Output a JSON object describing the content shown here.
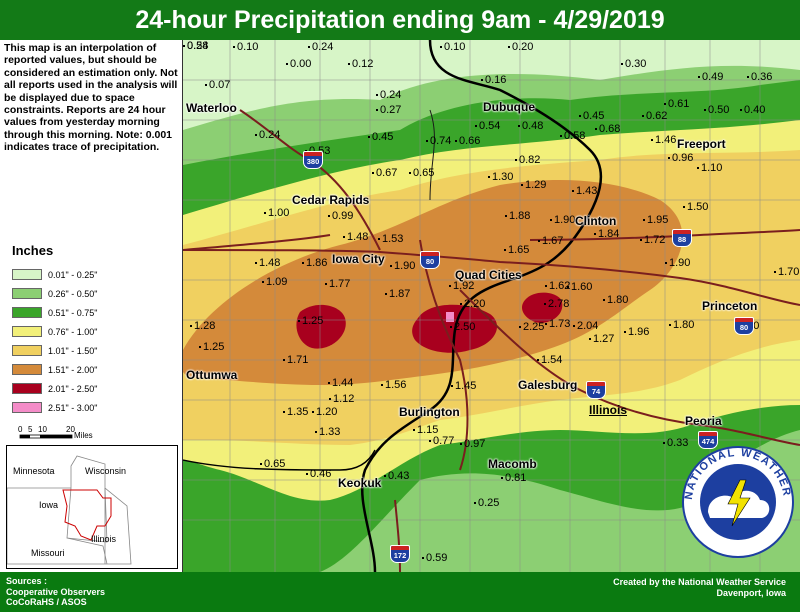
{
  "title": "24-hour Precipitation ending 9am - 4/29/2019",
  "note": "This map is an interpolation of reported values, but should be considered an estimation only. Not all reports used in the analysis will be displayed due to space constraints. Reports are 24 hour values from yesterday morning through this morning. Note: 0.001 indicates trace of precipitation.",
  "legend": {
    "title": "Inches",
    "items": [
      {
        "label": "0.01\" - 0.25\"",
        "color": "#d7f5c7"
      },
      {
        "label": "0.26\" - 0.50\"",
        "color": "#8ccf73"
      },
      {
        "label": "0.51\" - 0.75\"",
        "color": "#3aa52a"
      },
      {
        "label": "0.76\" - 1.00\"",
        "color": "#f2f07a"
      },
      {
        "label": "1.01\" - 1.50\"",
        "color": "#f0d060"
      },
      {
        "label": "1.51\" - 2.00\"",
        "color": "#d48a3a"
      },
      {
        "label": "2.01\" - 2.50\"",
        "color": "#a8001e"
      },
      {
        "label": "2.51\" - 3.00\"",
        "color": "#f48cc8"
      }
    ]
  },
  "scale": {
    "ticks": [
      "0",
      "5",
      "10",
      "20"
    ],
    "unit": "Miles"
  },
  "inset": {
    "states": [
      "Minnesota",
      "Wisconsin",
      "Iowa",
      "Illinois",
      "Missouri"
    ]
  },
  "map": {
    "state_label": "Illinois",
    "cities": [
      "Waterloo",
      "Dubuque",
      "Freeport",
      "Cedar Rapids",
      "Clinton",
      "Iowa City",
      "Quad Cities",
      "Princeton",
      "Ottumwa",
      "Galesburg",
      "Burlington",
      "Peoria",
      "Macomb",
      "Keokuk"
    ],
    "interstates": [
      "380",
      "80",
      "88",
      "80",
      "74",
      "474",
      "172"
    ],
    "values": [
      "0.10",
      "0.24",
      "0.10",
      "0.20",
      "0.00",
      "0.12",
      "0.30",
      "0.49",
      "0.36",
      "0.07",
      "0.16",
      "0.24",
      "0.27",
      "0.61",
      "0.50",
      "0.40",
      "0.45",
      "0.62",
      "0.54",
      "0.48",
      "0.68",
      "0.24",
      "0.45",
      "0.74",
      "0.66",
      "0.58",
      "1.46",
      "0.53",
      "0.96",
      "0.82",
      "1.10",
      "0.67",
      "0.65",
      "1.30",
      "1.29",
      "1.43",
      "1.50",
      "1.00",
      "0.99",
      "1.88",
      "1.90",
      "1.95",
      "1.48",
      "1.53",
      "1.67",
      "1.84",
      "1.72",
      "1.65",
      "1.48",
      "1.86",
      "1.90",
      "1.90",
      "1.92",
      "1.62",
      "1.60",
      "1.70",
      "1.09",
      "1.77",
      "1.87",
      "1.80",
      "2.20",
      "2.78",
      "2.00",
      "1.28",
      "1.25",
      "2.50",
      "2.25",
      "1.73",
      "2.04",
      "1.96",
      "1.80",
      "1.25",
      "1.27",
      "1.71",
      "1.54",
      "1.56",
      "1.44",
      "1.45",
      "1.12",
      "1.20",
      "1.35",
      "1.33",
      "1.15",
      "0.77",
      "0.97",
      "0.33",
      "0.65",
      "0.46",
      "0.43",
      "0.81",
      "0.25",
      "0.59",
      "0.54",
      "0.28"
    ]
  },
  "footer": {
    "sources_title": "Sources :",
    "source1": "Cooperative Observers",
    "source2": "CoCoRaHS / ASOS",
    "credit1": "Created by the National Weather Service",
    "credit2": "Davenport, Iowa"
  },
  "logo_text": "NATIONAL WEATHER SERVICE"
}
